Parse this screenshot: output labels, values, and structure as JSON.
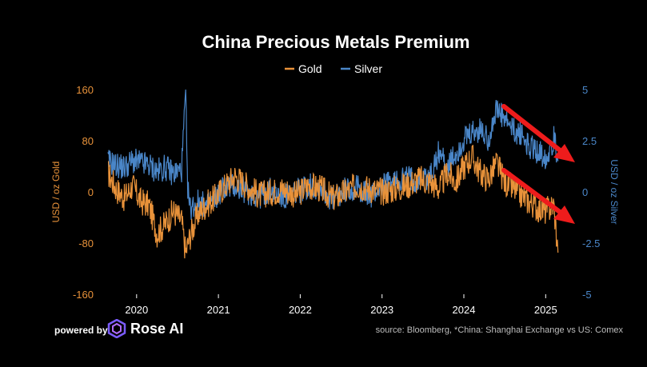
{
  "chart_data": {
    "type": "line",
    "title": "China Precious Metals Premium",
    "legend": [
      "Gold",
      "Silver"
    ],
    "legend_position": "top-center",
    "ylabel_left": "USD / oz Gold",
    "ylabel_right": "USD / oz Silver",
    "ylim_left": [
      -160,
      160
    ],
    "ylim_right": [
      -5,
      5
    ],
    "yticks_left": [
      "160",
      "80",
      "0",
      "-80",
      "-160"
    ],
    "yticks_right": [
      "5",
      "2.5",
      "0",
      "-2.5",
      "-5"
    ],
    "xlim": [
      2019.65,
      2025.3
    ],
    "xticks": [
      "2020",
      "2021",
      "2022",
      "2023",
      "2024",
      "2025"
    ],
    "grid": false,
    "colors": {
      "gold": "#e8923a",
      "silver": "#4a86c8",
      "arrow": "#ee1c1c"
    },
    "series": [
      {
        "name": "Gold",
        "axis": "left",
        "x": [
          2019.65,
          2019.75,
          2019.85,
          2019.95,
          2020.05,
          2020.15,
          2020.25,
          2020.35,
          2020.45,
          2020.55,
          2020.6,
          2020.65,
          2020.75,
          2020.85,
          2020.95,
          2021.05,
          2021.2,
          2021.35,
          2021.5,
          2021.65,
          2021.8,
          2021.95,
          2022.1,
          2022.25,
          2022.4,
          2022.55,
          2022.7,
          2022.85,
          2023.0,
          2023.15,
          2023.3,
          2023.45,
          2023.6,
          2023.7,
          2023.8,
          2023.9,
          2024.0,
          2024.1,
          2024.2,
          2024.3,
          2024.4,
          2024.5,
          2024.6,
          2024.7,
          2024.8,
          2024.9,
          2025.0,
          2025.1,
          2025.15
        ],
        "values": [
          30,
          5,
          -10,
          10,
          -15,
          -20,
          -65,
          -50,
          -30,
          -45,
          -95,
          -70,
          -35,
          -20,
          -10,
          5,
          25,
          10,
          -5,
          0,
          5,
          -5,
          10,
          5,
          -10,
          0,
          10,
          5,
          0,
          5,
          10,
          20,
          15,
          5,
          30,
          15,
          40,
          55,
          30,
          20,
          45,
          15,
          5,
          -5,
          -15,
          -25,
          -30,
          -20,
          -95
        ]
      },
      {
        "name": "Silver",
        "axis": "right",
        "x": [
          2019.65,
          2019.75,
          2019.85,
          2019.95,
          2020.05,
          2020.15,
          2020.25,
          2020.35,
          2020.45,
          2020.55,
          2020.6,
          2020.62,
          2020.65,
          2020.75,
          2020.85,
          2020.95,
          2021.05,
          2021.2,
          2021.35,
          2021.5,
          2021.65,
          2021.8,
          2021.95,
          2022.1,
          2022.25,
          2022.4,
          2022.55,
          2022.7,
          2022.85,
          2023.0,
          2023.15,
          2023.3,
          2023.45,
          2023.6,
          2023.7,
          2023.8,
          2023.9,
          2024.0,
          2024.1,
          2024.2,
          2024.3,
          2024.4,
          2024.5,
          2024.6,
          2024.7,
          2024.8,
          2024.9,
          2025.0,
          2025.1,
          2025.15
        ],
        "values": [
          1.5,
          1.3,
          1.2,
          1.5,
          1.4,
          1.3,
          1.0,
          1.2,
          0.9,
          1.1,
          4.9,
          0.5,
          -0.8,
          -0.5,
          -0.7,
          -0.4,
          0.2,
          0.3,
          0.0,
          -0.2,
          0.1,
          -0.3,
          0.0,
          0.3,
          0.2,
          -0.4,
          0.1,
          0.2,
          -0.2,
          0.3,
          0.5,
          0.7,
          0.6,
          0.8,
          2.0,
          1.2,
          1.8,
          2.5,
          2.8,
          3.0,
          2.6,
          4.0,
          3.5,
          3.0,
          2.8,
          2.2,
          2.0,
          1.7,
          2.6,
          1.5
        ]
      }
    ],
    "annotations": [
      "red-arrow-down-silver",
      "red-arrow-down-gold"
    ]
  },
  "footer": {
    "powered_by": "powered by",
    "brand": "Rose AI",
    "source": "source: Bloomberg, *China: Shanghai Exchange vs US: Comex"
  }
}
